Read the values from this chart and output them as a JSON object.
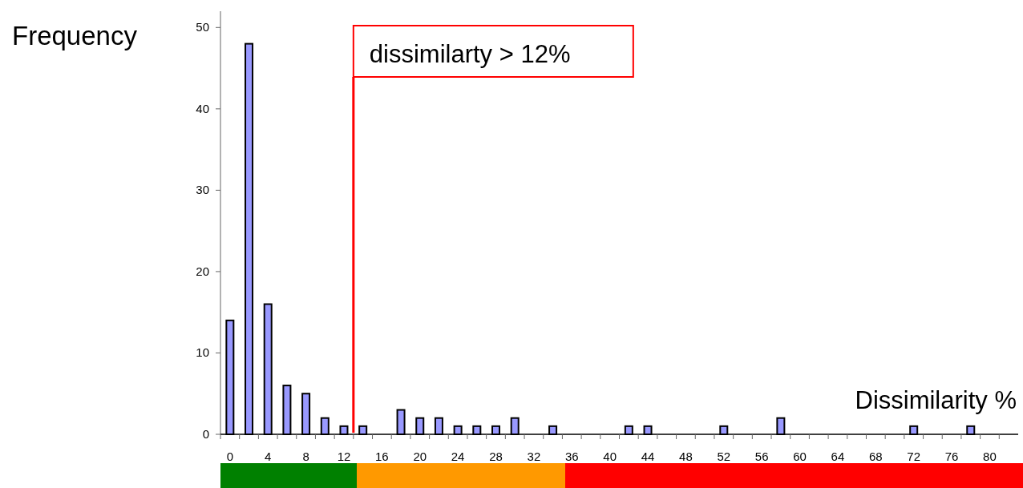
{
  "chart_data": {
    "type": "bar",
    "ylabel": "Frequency",
    "xlabel": "Dissimilarity %",
    "x": [
      0,
      2,
      4,
      6,
      8,
      10,
      12,
      14,
      18,
      20,
      22,
      24,
      26,
      28,
      30,
      34,
      42,
      44,
      52,
      58,
      72,
      78
    ],
    "values": [
      14,
      48,
      16,
      6,
      5,
      2,
      1,
      1,
      3,
      2,
      2,
      1,
      1,
      1,
      2,
      1,
      1,
      1,
      1,
      2,
      1,
      1
    ],
    "color": "#9999ff",
    "xlim": [
      -1,
      83
    ],
    "xticks": [
      0,
      4,
      8,
      12,
      16,
      20,
      24,
      28,
      32,
      36,
      40,
      44,
      48,
      52,
      56,
      60,
      64,
      68,
      72,
      76,
      80,
      {
        "value": -1,
        "label": null
      },
      {
        "value": 1,
        "label": null
      },
      {
        "value": 3,
        "label": null
      },
      {
        "value": 5,
        "label": null
      },
      {
        "value": 7,
        "label": null
      },
      {
        "value": 9,
        "label": null
      },
      {
        "value": 11,
        "label": null
      },
      {
        "value": 13,
        "label": null
      },
      {
        "value": 15,
        "label": null
      },
      {
        "value": 17,
        "label": null
      },
      {
        "value": 19,
        "label": null
      },
      {
        "value": 21,
        "label": null
      },
      {
        "value": 23,
        "label": null
      },
      {
        "value": 25,
        "label": null
      },
      {
        "value": 27,
        "label": null
      },
      {
        "value": 29,
        "label": null
      },
      {
        "value": 31,
        "label": null
      },
      {
        "value": 33,
        "label": null
      },
      {
        "value": 35,
        "label": null
      },
      {
        "value": 37,
        "label": null
      },
      {
        "value": 39,
        "label": null
      },
      {
        "value": 41,
        "label": null
      },
      {
        "value": 43,
        "label": null
      },
      {
        "value": 45,
        "label": null
      },
      {
        "value": 47,
        "label": null
      },
      {
        "value": 49,
        "label": null
      },
      {
        "value": 51,
        "label": null
      },
      {
        "value": 53,
        "label": null
      },
      {
        "value": 55,
        "label": null
      },
      {
        "value": 57,
        "label": null
      },
      {
        "value": 59,
        "label": null
      },
      {
        "value": 61,
        "label": null
      },
      {
        "value": 63,
        "label": null
      },
      {
        "value": 65,
        "label": null
      },
      {
        "value": 67,
        "label": null
      },
      {
        "value": 69,
        "label": null
      },
      {
        "value": 71,
        "label": null
      },
      {
        "value": 73,
        "label": null
      },
      {
        "value": 75,
        "label": null
      },
      {
        "value": 77,
        "label": null
      },
      {
        "value": 79,
        "label": null
      },
      {
        "value": 81,
        "label": null
      }
    ],
    "ylim": [
      0,
      52
    ],
    "yticks": [
      0,
      10,
      20,
      30,
      40,
      50
    ],
    "grid": false,
    "ref_lines": [
      {
        "axis": "x",
        "value": 13,
        "label": "dissimilarty > 12%",
        "color": "#ff0000"
      }
    ]
  }
}
